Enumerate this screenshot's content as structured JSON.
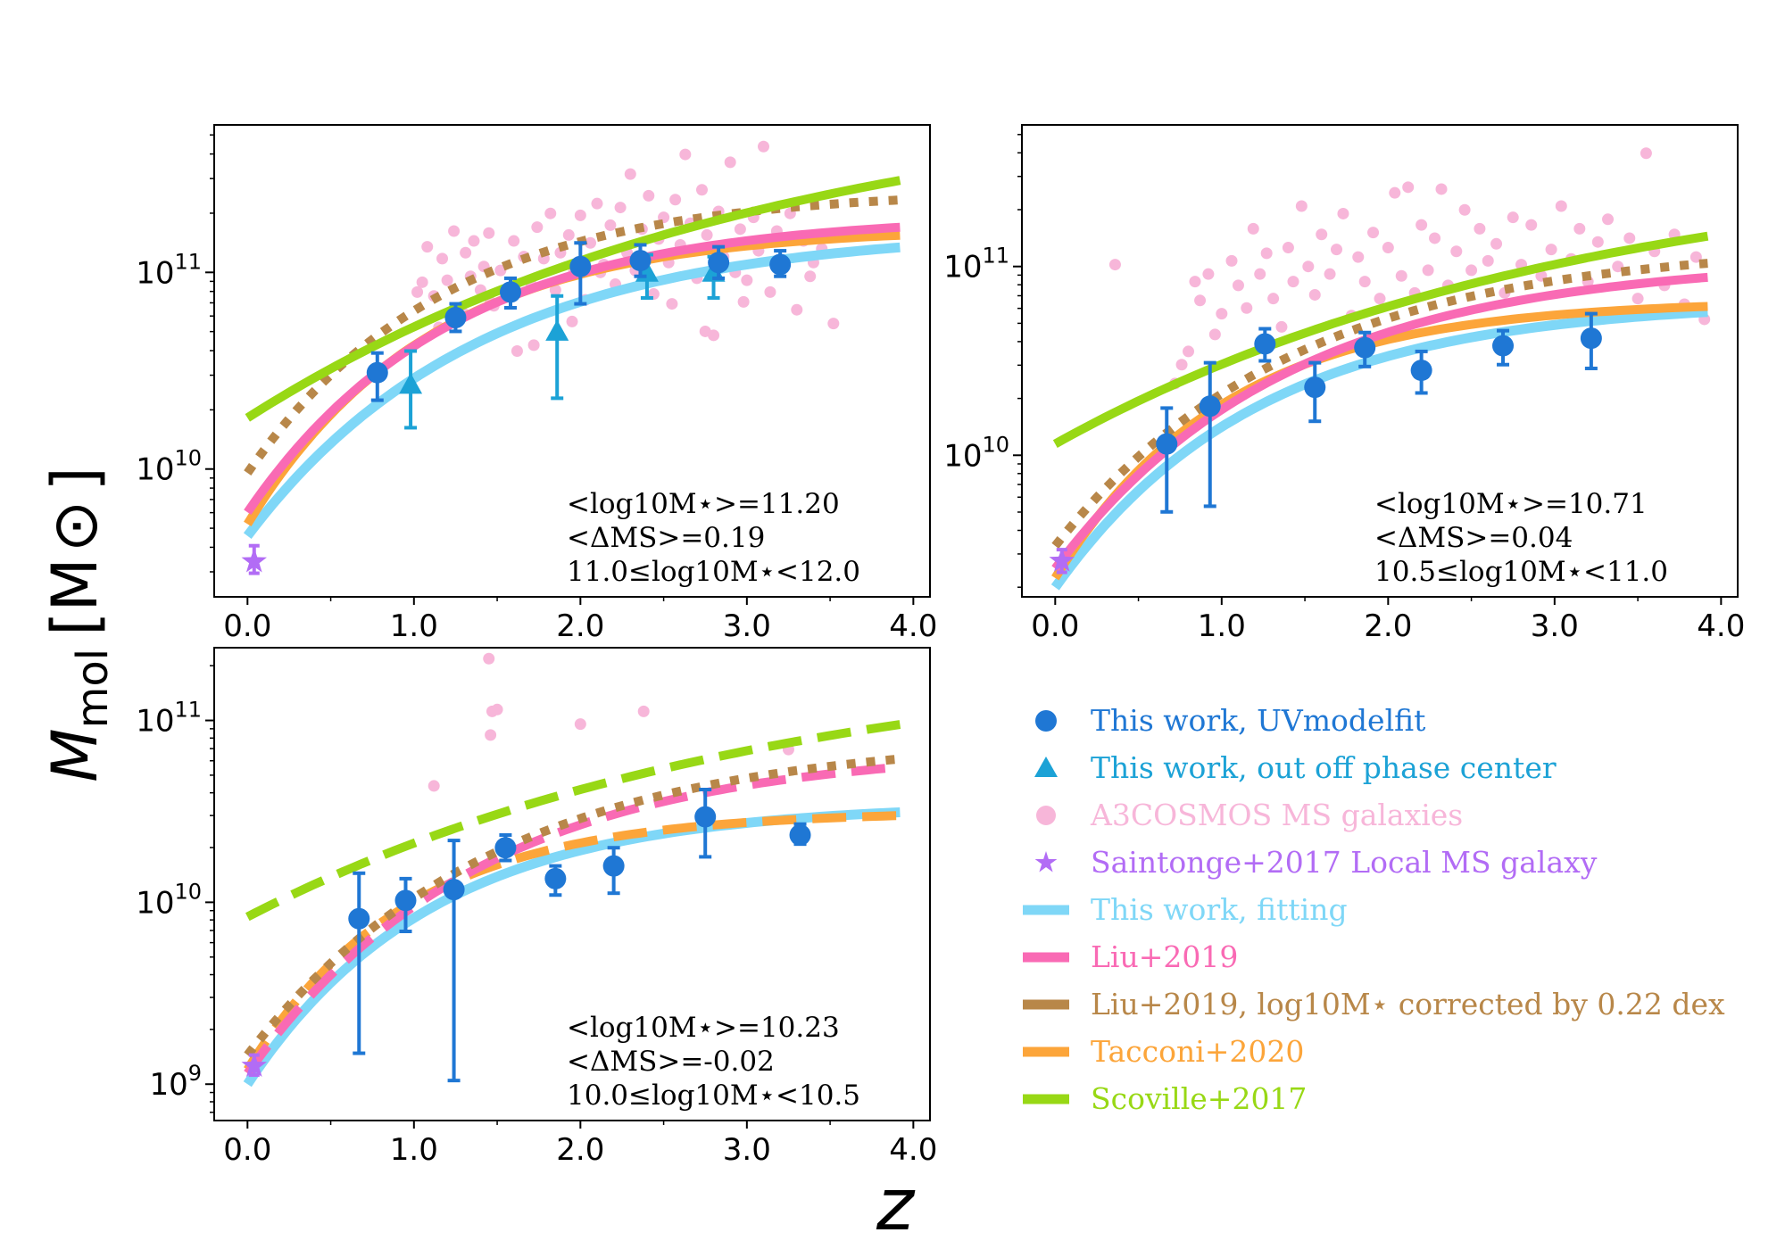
{
  "figure": {
    "ylabel_main": "M",
    "ylabel_sub": "mol",
    "ylabel_unit": "[M",
    "ylabel_sun": "⊙",
    "ylabel_close": "]",
    "xlabel": "z"
  },
  "colors": {
    "this_work_point": "#1f77d4",
    "out_phase_point": "#1ca2d6",
    "a3cosmos": "#f7b6d9",
    "saintonge": "#b26cf5",
    "fitting": "#7fd7f7",
    "liu": "#f96ab4",
    "liu_corr": "#b88749",
    "tacconi": "#fca53a",
    "scoville": "#98d815"
  },
  "legend": {
    "items": [
      {
        "label": "This work, UVmodelfit",
        "key": "this_work_point",
        "marker": "circle"
      },
      {
        "label": "This work, out off phase center",
        "key": "out_phase_point",
        "marker": "triangle"
      },
      {
        "label": "A3COSMOS MS galaxies",
        "key": "a3cosmos",
        "marker": "dot"
      },
      {
        "label": "Saintonge+2017 Local MS galaxy",
        "key": "saintonge",
        "marker": "star"
      },
      {
        "label": "This work, fitting",
        "key": "fitting",
        "marker": "line"
      },
      {
        "label": "Liu+2019",
        "key": "liu",
        "marker": "line"
      },
      {
        "label": "Liu+2019, log10M⋆ corrected by 0.22 dex",
        "key": "liu_corr",
        "marker": "line"
      },
      {
        "label": "Tacconi+2020",
        "key": "tacconi",
        "marker": "line"
      },
      {
        "label": "Scoville+2017",
        "key": "scoville",
        "marker": "line"
      }
    ]
  },
  "chart_data": [
    {
      "type": "scatter",
      "panel": "top-left",
      "xlim": [
        -0.2,
        4.1
      ],
      "ylim_log10": [
        9.35,
        11.75
      ],
      "xticks": [
        "0.0",
        "1.0",
        "2.0",
        "3.0",
        "4.0"
      ],
      "yticks": [
        {
          "base": "10",
          "exp": "10"
        },
        {
          "base": "10",
          "exp": "11"
        }
      ],
      "annotation": [
        "<log10M⋆>=11.20",
        "<ΔMS>=0.19",
        "11.0≤log10M⋆<12.0"
      ],
      "curves": {
        "fitting": {
          "y0": 9.66,
          "yinf": 11.22,
          "k": 0.72
        },
        "liu": {
          "y0": 9.78,
          "yinf": 11.29,
          "k": 0.82
        },
        "liu_corr": {
          "y0": 9.98,
          "yinf": 11.42,
          "k": 0.85
        },
        "tacconi": {
          "y0": 9.72,
          "yinf": 11.23,
          "k": 0.92
        },
        "scoville": {
          "y0": 10.26,
          "yinf": 11.95,
          "k": 0.32
        }
      },
      "curve_style": "solid",
      "this_work": [
        {
          "x": 0.78,
          "y": 10.49,
          "lo": 10.35,
          "hi": 10.59
        },
        {
          "x": 1.25,
          "y": 10.77,
          "lo": 10.7,
          "hi": 10.84
        },
        {
          "x": 1.58,
          "y": 10.9,
          "lo": 10.82,
          "hi": 10.97
        },
        {
          "x": 2.0,
          "y": 11.03,
          "lo": 10.84,
          "hi": 11.15
        },
        {
          "x": 2.36,
          "y": 11.06,
          "lo": 10.98,
          "hi": 11.14
        },
        {
          "x": 2.83,
          "y": 11.05,
          "lo": 10.97,
          "hi": 11.13
        },
        {
          "x": 3.2,
          "y": 11.04,
          "lo": 10.98,
          "hi": 11.11
        }
      ],
      "out_phase": [
        {
          "x": 0.98,
          "y": 10.43,
          "lo": 10.21,
          "hi": 10.6
        },
        {
          "x": 1.86,
          "y": 10.7,
          "lo": 10.36,
          "hi": 10.88
        },
        {
          "x": 2.4,
          "y": 11.0,
          "lo": 10.87,
          "hi": 11.09
        },
        {
          "x": 2.8,
          "y": 11.0,
          "lo": 10.87,
          "hi": 11.08
        }
      ],
      "saintonge": [
        {
          "x": 0.04,
          "y": 9.53,
          "lo": 9.47,
          "hi": 9.61
        }
      ],
      "a3cosmos": [
        [
          1.02,
          10.9
        ],
        [
          1.08,
          11.13
        ],
        [
          1.12,
          10.88
        ],
        [
          1.17,
          11.07
        ],
        [
          1.2,
          10.96
        ],
        [
          1.24,
          11.21
        ],
        [
          1.3,
          10.79
        ],
        [
          1.31,
          11.1
        ],
        [
          1.34,
          10.98
        ],
        [
          1.36,
          11.16
        ],
        [
          1.4,
          10.91
        ],
        [
          1.42,
          11.03
        ],
        [
          1.45,
          11.2
        ],
        [
          1.48,
          10.83
        ],
        [
          1.52,
          11.01
        ],
        [
          1.57,
          10.9
        ],
        [
          1.6,
          11.16
        ],
        [
          1.62,
          10.6
        ],
        [
          1.66,
          11.08
        ],
        [
          1.7,
          10.95
        ],
        [
          1.74,
          11.23
        ],
        [
          1.78,
          11.07
        ],
        [
          1.82,
          11.3
        ],
        [
          1.85,
          10.91
        ],
        [
          1.88,
          11.1
        ],
        [
          1.93,
          11.19
        ],
        [
          1.96,
          11.0
        ],
        [
          2.0,
          11.29
        ],
        [
          2.03,
          10.86
        ],
        [
          2.06,
          11.15
        ],
        [
          2.1,
          11.35
        ],
        [
          2.14,
          11.04
        ],
        [
          2.18,
          11.24
        ],
        [
          2.21,
          10.94
        ],
        [
          2.24,
          11.33
        ],
        [
          2.28,
          11.1
        ],
        [
          2.3,
          11.5
        ],
        [
          2.33,
          11.01
        ],
        [
          2.37,
          11.22
        ],
        [
          2.41,
          11.39
        ],
        [
          2.44,
          10.89
        ],
        [
          2.47,
          11.17
        ],
        [
          2.5,
          11.28
        ],
        [
          2.53,
          11.05
        ],
        [
          2.57,
          11.37
        ],
        [
          2.6,
          11.14
        ],
        [
          2.63,
          11.6
        ],
        [
          2.66,
          11.25
        ],
        [
          2.7,
          10.97
        ],
        [
          2.73,
          11.42
        ],
        [
          2.76,
          11.19
        ],
        [
          2.8,
          10.68
        ],
        [
          2.83,
          11.31
        ],
        [
          2.86,
          11.08
        ],
        [
          2.9,
          11.56
        ],
        [
          2.93,
          11.0
        ],
        [
          2.96,
          11.22
        ],
        [
          3.0,
          10.96
        ],
        [
          3.04,
          11.28
        ],
        [
          3.07,
          11.11
        ],
        [
          3.1,
          11.64
        ],
        [
          3.14,
          10.9
        ],
        [
          3.18,
          11.21
        ],
        [
          3.22,
          11.03
        ],
        [
          3.26,
          11.3
        ],
        [
          3.3,
          10.81
        ],
        [
          3.34,
          11.16
        ],
        [
          3.38,
          10.98
        ],
        [
          3.45,
          11.12
        ],
        [
          3.52,
          10.74
        ],
        [
          1.15,
          10.72
        ],
        [
          1.46,
          10.85
        ],
        [
          1.72,
          10.63
        ],
        [
          2.12,
          11.0
        ],
        [
          2.55,
          10.84
        ],
        [
          2.98,
          10.85
        ],
        [
          3.4,
          11.05
        ],
        [
          1.05,
          10.95
        ],
        [
          1.95,
          10.75
        ],
        [
          2.75,
          10.7
        ]
      ]
    },
    {
      "type": "scatter",
      "panel": "top-right",
      "xlim": [
        -0.2,
        4.1
      ],
      "ylim_log10": [
        9.25,
        11.75
      ],
      "xticks": [
        "0.0",
        "1.0",
        "2.0",
        "3.0",
        "4.0"
      ],
      "yticks": [
        {
          "base": "10",
          "exp": "10"
        },
        {
          "base": "10",
          "exp": "11"
        }
      ],
      "annotation": [
        "<log10M⋆>=10.71",
        "<ΔMS>=0.04",
        "10.5≤log10M⋆<11.0"
      ],
      "curves": {
        "fitting": {
          "y0": 9.3,
          "yinf": 10.82,
          "k": 0.82
        },
        "liu": {
          "y0": 9.4,
          "yinf": 11.04,
          "k": 0.72
        },
        "liu_corr": {
          "y0": 9.52,
          "yinf": 11.12,
          "k": 0.7
        },
        "tacconi": {
          "y0": 9.35,
          "yinf": 10.82,
          "k": 0.98
        },
        "scoville": {
          "y0": 10.06,
          "yinf": 11.6,
          "k": 0.32
        }
      },
      "curve_style": "solid",
      "this_work": [
        {
          "x": 0.67,
          "y": 10.06,
          "lo": 9.7,
          "hi": 10.25
        },
        {
          "x": 0.93,
          "y": 10.26,
          "lo": 9.73,
          "hi": 10.49
        },
        {
          "x": 1.26,
          "y": 10.59,
          "lo": 10.5,
          "hi": 10.67
        },
        {
          "x": 1.56,
          "y": 10.36,
          "lo": 10.18,
          "hi": 10.49
        },
        {
          "x": 1.86,
          "y": 10.57,
          "lo": 10.47,
          "hi": 10.65
        },
        {
          "x": 2.2,
          "y": 10.45,
          "lo": 10.33,
          "hi": 10.55
        },
        {
          "x": 2.69,
          "y": 10.58,
          "lo": 10.48,
          "hi": 10.66
        },
        {
          "x": 3.22,
          "y": 10.62,
          "lo": 10.46,
          "hi": 10.75
        }
      ],
      "out_phase": [],
      "saintonge": [
        {
          "x": 0.04,
          "y": 9.44,
          "lo": 9.38,
          "hi": 9.5
        }
      ],
      "a3cosmos": [
        [
          0.36,
          11.01
        ],
        [
          0.72,
          10.38
        ],
        [
          0.76,
          10.48
        ],
        [
          0.8,
          10.55
        ],
        [
          0.84,
          10.92
        ],
        [
          0.87,
          10.82
        ],
        [
          0.92,
          10.96
        ],
        [
          0.96,
          10.64
        ],
        [
          1.0,
          10.75
        ],
        [
          1.06,
          11.03
        ],
        [
          1.1,
          10.9
        ],
        [
          1.15,
          10.78
        ],
        [
          1.19,
          11.2
        ],
        [
          1.23,
          10.96
        ],
        [
          1.27,
          11.07
        ],
        [
          1.31,
          10.83
        ],
        [
          1.36,
          10.68
        ],
        [
          1.4,
          11.1
        ],
        [
          1.43,
          10.92
        ],
        [
          1.48,
          11.32
        ],
        [
          1.52,
          11.0
        ],
        [
          1.56,
          10.85
        ],
        [
          1.6,
          11.17
        ],
        [
          1.65,
          10.96
        ],
        [
          1.69,
          11.09
        ],
        [
          1.73,
          11.28
        ],
        [
          1.78,
          10.74
        ],
        [
          1.82,
          11.05
        ],
        [
          1.86,
          10.92
        ],
        [
          1.91,
          11.18
        ],
        [
          1.95,
          10.83
        ],
        [
          2.0,
          11.1
        ],
        [
          2.04,
          11.39
        ],
        [
          2.08,
          10.95
        ],
        [
          2.12,
          11.42
        ],
        [
          2.16,
          10.86
        ],
        [
          2.2,
          11.22
        ],
        [
          2.24,
          10.98
        ],
        [
          2.28,
          11.15
        ],
        [
          2.32,
          11.41
        ],
        [
          2.36,
          10.9
        ],
        [
          2.41,
          11.08
        ],
        [
          2.46,
          11.3
        ],
        [
          2.5,
          10.98
        ],
        [
          2.55,
          11.2
        ],
        [
          2.6,
          11.03
        ],
        [
          2.65,
          11.12
        ],
        [
          2.7,
          10.86
        ],
        [
          2.75,
          11.26
        ],
        [
          2.8,
          11.01
        ],
        [
          2.86,
          11.22
        ],
        [
          2.92,
          10.95
        ],
        [
          2.98,
          11.09
        ],
        [
          3.04,
          11.32
        ],
        [
          3.1,
          11.04
        ],
        [
          3.15,
          11.2
        ],
        [
          3.2,
          10.92
        ],
        [
          3.26,
          11.13
        ],
        [
          3.32,
          11.25
        ],
        [
          3.38,
          11.0
        ],
        [
          3.45,
          11.15
        ],
        [
          3.5,
          10.83
        ],
        [
          3.55,
          11.6
        ],
        [
          3.6,
          11.08
        ],
        [
          3.66,
          10.9
        ],
        [
          3.72,
          11.17
        ],
        [
          3.78,
          10.8
        ],
        [
          3.85,
          11.05
        ],
        [
          3.9,
          10.72
        ]
      ]
    },
    {
      "type": "scatter",
      "panel": "bottom-left",
      "xlim": [
        -0.2,
        4.1
      ],
      "ylim_log10": [
        8.8,
        11.4
      ],
      "xticks": [
        "0.0",
        "1.0",
        "2.0",
        "3.0",
        "4.0"
      ],
      "yticks": [
        {
          "base": "10",
          "exp": "9"
        },
        {
          "base": "10",
          "exp": "10"
        },
        {
          "base": "10",
          "exp": "11"
        }
      ],
      "annotation": [
        "<log10M⋆>=10.23",
        "<ΔMS>=-0.02",
        "10.0≤log10M⋆<10.5"
      ],
      "curves": {
        "fitting": {
          "y0": 9.0,
          "yinf": 10.54,
          "k": 0.9
        },
        "liu": {
          "y0": 9.06,
          "yinf": 10.85,
          "k": 0.72
        },
        "liu_corr": {
          "y0": 9.16,
          "yinf": 10.91,
          "k": 0.68
        },
        "tacconi": {
          "y0": 9.08,
          "yinf": 10.5,
          "k": 1.05
        },
        "scoville": {
          "y0": 9.92,
          "yinf": 11.4,
          "k": 0.32
        }
      },
      "curve_style": "dashed-except-fitting",
      "this_work": [
        {
          "x": 0.67,
          "y": 9.91,
          "lo": 9.17,
          "hi": 10.16
        },
        {
          "x": 0.95,
          "y": 10.01,
          "lo": 9.84,
          "hi": 10.13
        },
        {
          "x": 1.24,
          "y": 10.07,
          "lo": 9.02,
          "hi": 10.34
        },
        {
          "x": 1.55,
          "y": 10.3,
          "lo": 10.23,
          "hi": 10.37
        },
        {
          "x": 1.85,
          "y": 10.13,
          "lo": 10.04,
          "hi": 10.2
        },
        {
          "x": 2.2,
          "y": 10.2,
          "lo": 10.05,
          "hi": 10.3
        },
        {
          "x": 2.75,
          "y": 10.47,
          "lo": 10.25,
          "hi": 10.62
        },
        {
          "x": 3.32,
          "y": 10.37,
          "lo": 10.32,
          "hi": 10.43
        }
      ],
      "out_phase": [],
      "saintonge": [
        {
          "x": 0.04,
          "y": 9.1,
          "lo": 9.05,
          "hi": 9.16
        }
      ],
      "a3cosmos": [
        [
          1.12,
          10.64
        ],
        [
          1.45,
          11.34
        ],
        [
          1.47,
          11.05
        ],
        [
          1.5,
          11.06
        ],
        [
          1.46,
          10.92
        ],
        [
          2.0,
          10.98
        ],
        [
          2.38,
          11.05
        ],
        [
          3.25,
          10.84
        ]
      ]
    }
  ]
}
